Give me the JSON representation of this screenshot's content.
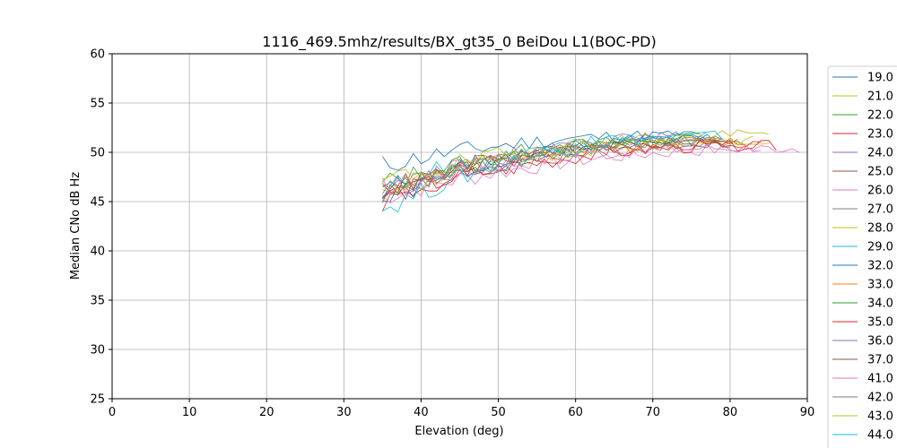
{
  "chart_data": {
    "type": "line",
    "title": "1116_469.5mhz/results/BX_gt35_0 BeiDou L1(BOC-PD)",
    "xlabel": "Elevation (deg)",
    "ylabel": "Median CNo dB Hz",
    "xlim": [
      0,
      90
    ],
    "ylim": [
      25,
      60
    ],
    "xticks": [
      "0",
      "10",
      "20",
      "30",
      "40",
      "50",
      "60",
      "70",
      "80",
      "90"
    ],
    "yticks": [
      "25",
      "30",
      "35",
      "40",
      "45",
      "50",
      "55",
      "60"
    ],
    "grid": true,
    "legend_position": "right (clipped)",
    "series": [
      {
        "name": "19.0",
        "color": "#1f77b4",
        "x_start": 35,
        "x_end": 79,
        "y_start": 45.0,
        "y_end": 51.5
      },
      {
        "name": "21.0",
        "color": "#bcbd22",
        "x_start": 35,
        "x_end": 85,
        "y_start": 46.5,
        "y_end": 51.3
      },
      {
        "name": "22.0",
        "color": "#2ca02c",
        "x_start": 35,
        "x_end": 78,
        "y_start": 45.5,
        "y_end": 51.4
      },
      {
        "name": "23.0",
        "color": "#d62728",
        "x_start": 35,
        "x_end": 84,
        "y_start": 45.0,
        "y_end": 51.0
      },
      {
        "name": "24.0",
        "color": "#9467bd",
        "x_start": 35,
        "x_end": 80,
        "y_start": 46.0,
        "y_end": 51.3
      },
      {
        "name": "25.0",
        "color": "#8c564b",
        "x_start": 35,
        "x_end": 81,
        "y_start": 46.2,
        "y_end": 51.0
      },
      {
        "name": "26.0",
        "color": "#e377c2",
        "x_start": 35,
        "x_end": 89,
        "y_start": 45.5,
        "y_end": 50.4
      },
      {
        "name": "27.0",
        "color": "#7f7f7f",
        "x_start": 35,
        "x_end": 82,
        "y_start": 46.0,
        "y_end": 51.0
      },
      {
        "name": "28.0",
        "color": "#bcbd22",
        "x_start": 35,
        "x_end": 83,
        "y_start": 45.8,
        "y_end": 51.2
      },
      {
        "name": "29.0",
        "color": "#17becf",
        "x_start": 35,
        "x_end": 77,
        "y_start": 46.3,
        "y_end": 51.6
      },
      {
        "name": "32.0",
        "color": "#1f77b4",
        "x_start": 35,
        "x_end": 76,
        "y_start": 48.7,
        "y_end": 51.8
      },
      {
        "name": "33.0",
        "color": "#ff7f0e",
        "x_start": 35,
        "x_end": 82,
        "y_start": 46.4,
        "y_end": 51.1
      },
      {
        "name": "34.0",
        "color": "#2ca02c",
        "x_start": 35,
        "x_end": 75,
        "y_start": 46.8,
        "y_end": 51.2
      },
      {
        "name": "35.0",
        "color": "#d62728",
        "x_start": 35,
        "x_end": 86,
        "y_start": 45.5,
        "y_end": 50.7
      },
      {
        "name": "36.0",
        "color": "#9467bd",
        "x_start": 35,
        "x_end": 78,
        "y_start": 46.0,
        "y_end": 51.6
      },
      {
        "name": "37.0",
        "color": "#8c564b",
        "x_start": 35,
        "x_end": 80,
        "y_start": 46.2,
        "y_end": 50.9
      },
      {
        "name": "41.0",
        "color": "#e377c2",
        "x_start": 35,
        "x_end": 84,
        "y_start": 46.5,
        "y_end": 50.5
      },
      {
        "name": "42.0",
        "color": "#7f7f7f",
        "x_start": 35,
        "x_end": 79,
        "y_start": 45.9,
        "y_end": 51.2
      },
      {
        "name": "43.0",
        "color": "#bcbd22",
        "x_start": 35,
        "x_end": 85,
        "y_start": 47.0,
        "y_end": 51.8
      },
      {
        "name": "44.0",
        "color": "#17becf",
        "x_start": 35,
        "x_end": 79,
        "y_start": 44.2,
        "y_end": 51.7
      }
    ]
  }
}
